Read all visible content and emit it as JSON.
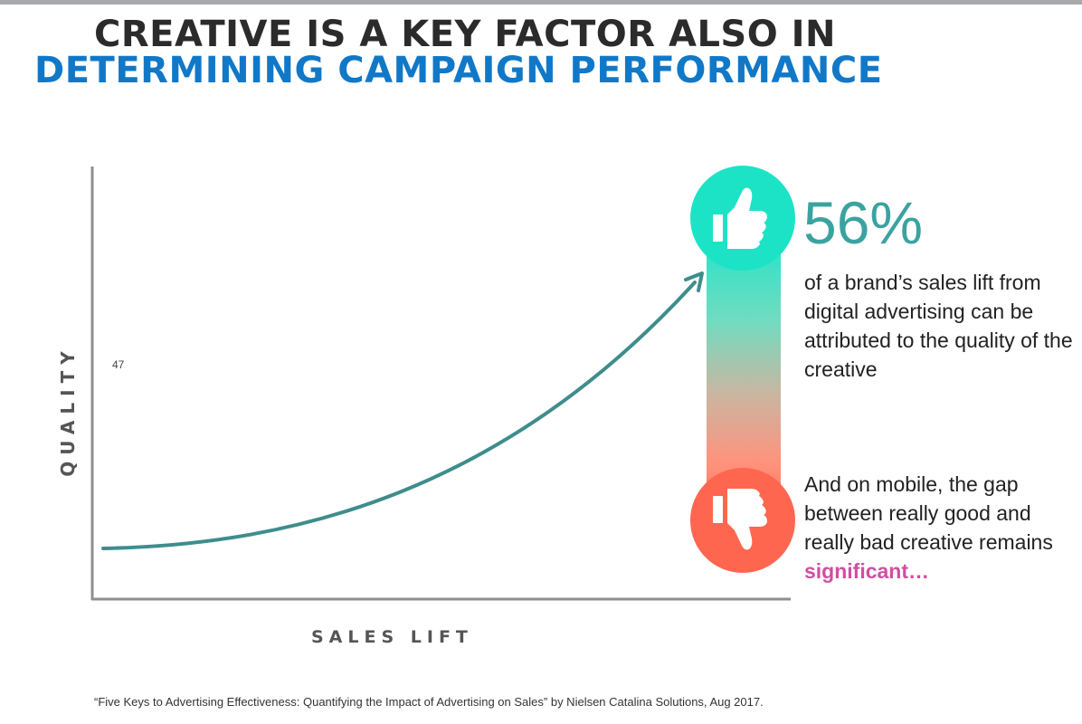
{
  "title": {
    "line1": "CREATIVE IS A KEY FACTOR ALSO IN",
    "line2": "DETERMINING CAMPAIGN PERFORMANCE"
  },
  "diagram": {
    "y_axis_label": "QUALITY",
    "x_axis_label": "SALES LIFT",
    "marker_number": "47",
    "icons": [
      "thumbs-up-icon",
      "thumbs-down-icon"
    ],
    "colors": {
      "curve": "#3e8d8c",
      "axis": "#8f8f8f",
      "good": "#1fe0c8",
      "bad": "#ff6650"
    }
  },
  "stat": {
    "value": "56%",
    "description": "of a brand’s sales lift from digital advertising can be attributed to the quality of the creative"
  },
  "mobile_note": {
    "text": "And on mobile, the gap between really good and really bad creative remains ",
    "highlight": "significant…"
  },
  "source": "“Five Keys to Advertising Effectiveness: Quantifying the Impact of Advertising on Sales” by Nielsen Catalina Solutions, Aug 2017."
}
